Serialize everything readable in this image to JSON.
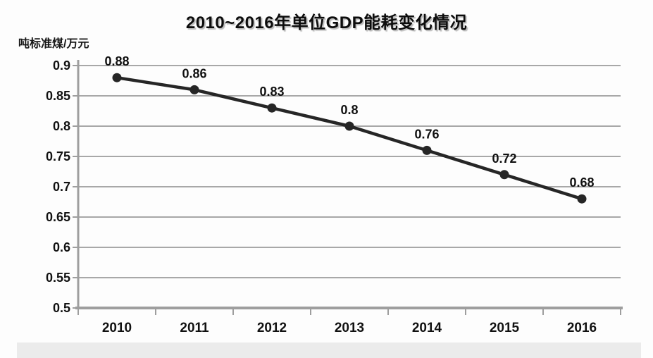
{
  "chart_data": {
    "type": "line",
    "title": "2010~2016年单位GDP能耗变化情况",
    "unit_label": "吨标准煤/万元",
    "categories": [
      "2010",
      "2011",
      "2012",
      "2013",
      "2014",
      "2015",
      "2016"
    ],
    "values": [
      0.88,
      0.86,
      0.83,
      0.8,
      0.76,
      0.72,
      0.68
    ],
    "data_labels": [
      "0.88",
      "0.86",
      "0.83",
      "0.8",
      "0.76",
      "0.72",
      "0.68"
    ],
    "ylabel": "吨标准煤/万元",
    "xlabel": "",
    "ylim": [
      0.5,
      0.9
    ],
    "ytick_step": 0.05,
    "ytick_labels": [
      "0.9",
      "0.85",
      "0.8",
      "0.75",
      "0.7",
      "0.65",
      "0.6",
      "0.55",
      "0.5"
    ],
    "grid": "on",
    "legend": "none",
    "colors": {
      "line": "#262626",
      "marker": "#262626",
      "grid": "#a8a8a8",
      "axis": "#9e9e9e",
      "text": "#111111",
      "background": "#fdfdfd",
      "bottom_strip": "#ebebeb"
    }
  }
}
